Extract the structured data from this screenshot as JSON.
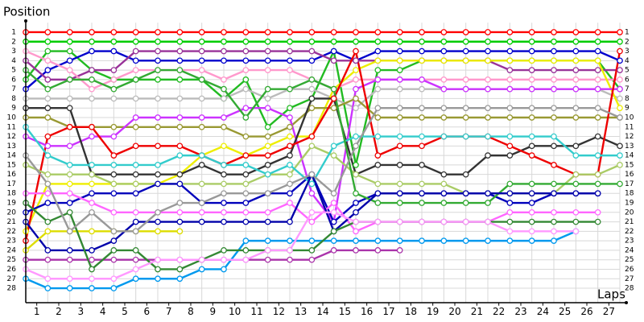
{
  "chart_data": {
    "type": "line",
    "ylabel": "Position",
    "xlabel": "Laps",
    "x": [
      0,
      1,
      2,
      3,
      4,
      5,
      6,
      7,
      8,
      9,
      10,
      11,
      12,
      13,
      14,
      15,
      16,
      17,
      18,
      19,
      20,
      21,
      22,
      23,
      24,
      25,
      26,
      27
    ],
    "xlim": [
      0,
      27
    ],
    "xticks": [
      {
        "value": 0.5,
        "label": "1"
      },
      {
        "value": 1.5,
        "label": "2"
      },
      {
        "value": 2.5,
        "label": "3"
      },
      {
        "value": 3.5,
        "label": "4"
      },
      {
        "value": 4.5,
        "label": "5"
      },
      {
        "value": 5.5,
        "label": "6"
      },
      {
        "value": 6.5,
        "label": "7"
      },
      {
        "value": 7.5,
        "label": "8"
      },
      {
        "value": 8.5,
        "label": "9"
      },
      {
        "value": 9.5,
        "label": "10"
      },
      {
        "value": 10.5,
        "label": "11"
      },
      {
        "value": 11.5,
        "label": "12"
      },
      {
        "value": 12.5,
        "label": "13"
      },
      {
        "value": 13.5,
        "label": "14"
      },
      {
        "value": 14.5,
        "label": "15"
      },
      {
        "value": 15.5,
        "label": "16"
      },
      {
        "value": 16.5,
        "label": "17"
      },
      {
        "value": 17.5,
        "label": "18"
      },
      {
        "value": 18.5,
        "label": "19"
      },
      {
        "value": 19.5,
        "label": "20"
      },
      {
        "value": 20.5,
        "label": "21"
      },
      {
        "value": 21.5,
        "label": "22"
      },
      {
        "value": 22.5,
        "label": "23"
      },
      {
        "value": 23.5,
        "label": "24"
      },
      {
        "value": 24.5,
        "label": "25"
      },
      {
        "value": 25.5,
        "label": "26"
      },
      {
        "value": 26.5,
        "label": "27"
      }
    ],
    "ylim": [
      0,
      29.5
    ],
    "inverted": true,
    "yticks": [
      1,
      2,
      3,
      4,
      5,
      6,
      7,
      8,
      9,
      10,
      11,
      12,
      13,
      14,
      15,
      16,
      17,
      18,
      19,
      20,
      21,
      22,
      23,
      24,
      25,
      26,
      27,
      28
    ],
    "grid": true,
    "series": [
      {
        "color": "#ff0000",
        "values": [
          1,
          1,
          1,
          1,
          1,
          1,
          1,
          1,
          1,
          1,
          1,
          1,
          1,
          1,
          1,
          1,
          1,
          1,
          1,
          1,
          1,
          1,
          1,
          1,
          1,
          1,
          1,
          1
        ]
      },
      {
        "color": "#00cc00",
        "values": [
          2,
          2,
          2,
          2,
          2,
          2,
          2,
          2,
          2,
          2,
          2,
          2,
          2,
          2,
          2,
          2,
          2,
          2,
          2,
          2,
          2,
          2,
          2,
          2,
          2,
          2,
          2,
          2
        ]
      },
      {
        "color": "#22bb22",
        "values": [
          6,
          3,
          3,
          5,
          6,
          6,
          6,
          6,
          6,
          8,
          6,
          11,
          9,
          8,
          3,
          15,
          5,
          5,
          4,
          4,
          4,
          4,
          4,
          4,
          4,
          4,
          4,
          7
        ]
      },
      {
        "color": "#0000cc",
        "values": [
          7,
          5,
          4,
          3,
          3,
          4,
          4,
          4,
          4,
          4,
          4,
          4,
          4,
          4,
          3,
          4,
          3,
          3,
          3,
          3,
          3,
          3,
          3,
          3,
          3,
          3,
          3,
          4
        ]
      },
      {
        "color": "#993399",
        "values": [
          4,
          6,
          6,
          5,
          5,
          3,
          3,
          3,
          3,
          3,
          3,
          3,
          3,
          3,
          4,
          4,
          4,
          4,
          4,
          4,
          4,
          4,
          5,
          5,
          5,
          5,
          5,
          5
        ]
      },
      {
        "color": "#ff99cc",
        "values": [
          3,
          4,
          5,
          7,
          6,
          5,
          5,
          5,
          5,
          6,
          5,
          5,
          5,
          6,
          7,
          6,
          6,
          6,
          6,
          6,
          6,
          6,
          6,
          6,
          6,
          6,
          6,
          6
        ]
      },
      {
        "color": "#bbbbbb",
        "values": [
          8,
          8,
          8,
          8,
          8,
          8,
          8,
          8,
          8,
          8,
          7,
          8,
          7,
          7,
          8,
          9,
          7,
          7,
          7,
          7,
          7,
          7,
          7,
          7,
          7,
          7,
          7,
          8
        ]
      },
      {
        "color": "#0099ee",
        "values": [
          27,
          28,
          28,
          28,
          28,
          27,
          27,
          27,
          26,
          26,
          23,
          23,
          23,
          23,
          23,
          23,
          23,
          23,
          23,
          23,
          23,
          23,
          23,
          23,
          23,
          22,
          null,
          null
        ]
      },
      {
        "color": "#eeee00",
        "values": [
          22,
          17,
          17,
          17,
          17,
          17,
          17,
          16,
          14,
          13,
          14,
          13,
          12,
          12,
          7,
          5,
          4,
          4,
          4,
          4,
          4,
          4,
          4,
          4,
          4,
          4,
          4,
          9
        ]
      },
      {
        "color": "#999933",
        "values": [
          10,
          10,
          11,
          11,
          11,
          11,
          11,
          11,
          11,
          11,
          12,
          12,
          11,
          9,
          9,
          8,
          10,
          10,
          10,
          10,
          10,
          10,
          10,
          10,
          10,
          10,
          10,
          10
        ]
      },
      {
        "color": "#cc33ff",
        "values": [
          12,
          13,
          13,
          12,
          12,
          10,
          10,
          10,
          10,
          10,
          9,
          9,
          10,
          18,
          21,
          7,
          6,
          6,
          6,
          7,
          7,
          7,
          7,
          7,
          7,
          7,
          7,
          7
        ]
      },
      {
        "color": "#333333",
        "values": [
          9,
          9,
          9,
          16,
          16,
          16,
          16,
          16,
          15,
          16,
          16,
          15,
          14,
          8,
          8,
          16,
          15,
          15,
          15,
          16,
          16,
          14,
          14,
          13,
          13,
          13,
          12,
          13
        ]
      },
      {
        "color": "#ee0000",
        "values": [
          23,
          12,
          11,
          11,
          14,
          13,
          13,
          13,
          14,
          15,
          14,
          14,
          13,
          12,
          8,
          3,
          14,
          13,
          13,
          12,
          12,
          12,
          13,
          14,
          15,
          16,
          16,
          3
        ]
      },
      {
        "color": "#aacc66",
        "values": [
          15,
          16,
          16,
          16,
          17,
          17,
          17,
          17,
          17,
          17,
          17,
          16,
          16,
          13,
          14,
          16,
          17,
          17,
          17,
          17,
          18,
          18,
          18,
          18,
          18,
          16,
          16,
          15
        ]
      },
      {
        "color": "#0000bb",
        "values": [
          20,
          19,
          19,
          18,
          18,
          18,
          17,
          17,
          19,
          19,
          19,
          18,
          18,
          16,
          21,
          19,
          18,
          18,
          18,
          18,
          18,
          18,
          19,
          19,
          18,
          18,
          18,
          null
        ]
      },
      {
        "color": "#33cccc",
        "values": [
          11,
          14,
          15,
          15,
          15,
          15,
          15,
          14,
          14,
          15,
          15,
          16,
          15,
          17,
          13,
          12,
          12,
          12,
          12,
          12,
          12,
          12,
          12,
          12,
          12,
          14,
          14,
          14
        ]
      },
      {
        "color": "#33aa33",
        "values": [
          5,
          7,
          6,
          6,
          7,
          6,
          5,
          5,
          6,
          7,
          10,
          7,
          7,
          6,
          7,
          18,
          19,
          19,
          19,
          19,
          19,
          19,
          17,
          17,
          17,
          17,
          17,
          17
        ]
      },
      {
        "color": "#ff66ff",
        "values": [
          18,
          18,
          18,
          19,
          20,
          20,
          20,
          20,
          20,
          20,
          20,
          20,
          19,
          21,
          19,
          22,
          21,
          21,
          21,
          21,
          21,
          21,
          20,
          20,
          20,
          20,
          20,
          null
        ]
      },
      {
        "color": "#0000aa",
        "values": [
          21,
          24,
          24,
          24,
          23,
          21,
          21,
          21,
          21,
          21,
          21,
          21,
          21,
          16,
          22,
          20,
          18,
          18,
          18,
          18,
          18,
          18,
          18,
          18,
          18,
          18,
          18,
          null
        ]
      },
      {
        "color": "#dddd00",
        "values": [
          24,
          22,
          22,
          22,
          22,
          22,
          22,
          22,
          null,
          null,
          null,
          null,
          null,
          null,
          null,
          null,
          null,
          null,
          null,
          null,
          null,
          null,
          null,
          null,
          null,
          null,
          null,
          null
        ]
      },
      {
        "color": "#aa33aa",
        "values": [
          25,
          25,
          25,
          25,
          25,
          25,
          25,
          25,
          25,
          25,
          25,
          25,
          25,
          25,
          24,
          24,
          24,
          24,
          null,
          null,
          null,
          null,
          null,
          null,
          null,
          null,
          null,
          null
        ]
      },
      {
        "color": "#338833",
        "values": [
          19,
          21,
          20,
          26,
          24,
          24,
          26,
          26,
          25,
          24,
          24,
          24,
          24,
          24,
          22,
          21,
          21,
          21,
          21,
          21,
          21,
          21,
          21,
          21,
          21,
          21,
          21,
          null
        ]
      },
      {
        "color": "#ff99ff",
        "values": [
          26,
          27,
          27,
          27,
          27,
          26,
          25,
          25,
          25,
          25,
          25,
          24,
          24,
          20,
          20,
          21,
          21,
          21,
          21,
          21,
          21,
          21,
          22,
          22,
          22,
          22,
          null,
          null
        ]
      },
      {
        "color": "#999999",
        "values": [
          14,
          17,
          22,
          20,
          22,
          22,
          20,
          19,
          19,
          18,
          18,
          18,
          17,
          16,
          18,
          13,
          9,
          9,
          9,
          9,
          9,
          9,
          9,
          9,
          9,
          9,
          9,
          10
        ]
      }
    ]
  }
}
